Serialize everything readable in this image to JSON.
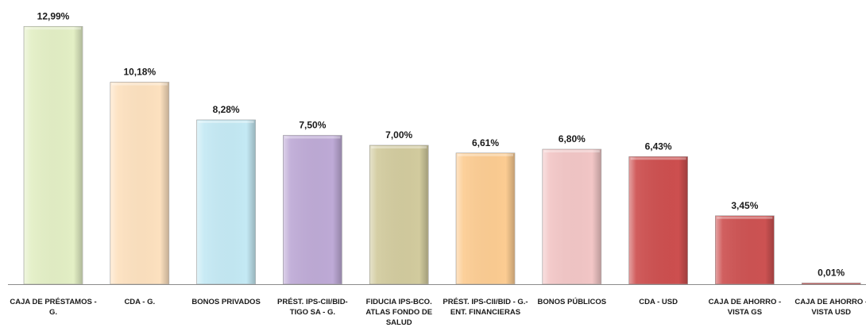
{
  "chart_data": {
    "type": "bar",
    "title": "",
    "xlabel": "",
    "ylabel": "",
    "ylim": [
      0,
      13.6
    ],
    "grid": false,
    "legend": "none",
    "categories": [
      [
        "CAJA DE PRÉSTAMOS -",
        "G."
      ],
      [
        "CDA - G."
      ],
      [
        "BONOS PRIVADOS"
      ],
      [
        "PRÉST. IPS-CII/BID-",
        "TIGO SA - G."
      ],
      [
        "FIDUCIA IPS-BCO.",
        "ATLAS FONDO DE",
        "SALUD"
      ],
      [
        "PRÉST. IPS-CII/BID - G.-",
        "ENT. FINANCIERAS"
      ],
      [
        "BONOS PÚBLICOS"
      ],
      [
        "CDA - USD"
      ],
      [
        "CAJA DE AHORRO -",
        "VISTA GS"
      ],
      [
        "CAJA DE AHORRO -",
        "VISTA USD"
      ]
    ],
    "values": [
      12.99,
      10.18,
      8.28,
      7.5,
      7.0,
      6.61,
      6.8,
      6.43,
      3.45,
      0.01
    ],
    "labels": [
      "12,99%",
      "10,18%",
      "8,28%",
      "7,50%",
      "7,00%",
      "6,61%",
      "6,80%",
      "6,43%",
      "3,45%",
      "0,01%"
    ],
    "colors": [
      "#e3efc5",
      "#fde1bf",
      "#c4e9f4",
      "#beaad6",
      "#d2cb9e",
      "#fccc92",
      "#f2c6c6",
      "#cd4f4f",
      "#cd5252",
      "#cd5252"
    ]
  }
}
